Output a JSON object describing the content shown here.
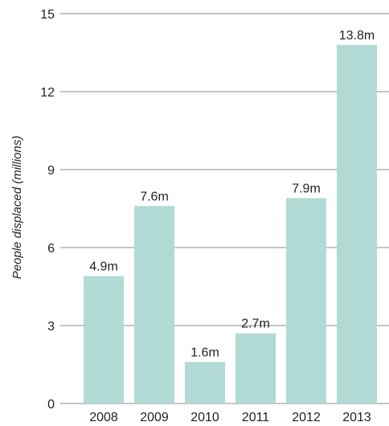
{
  "chart_data": {
    "type": "bar",
    "categories": [
      "2008",
      "2009",
      "2010",
      "2011",
      "2012",
      "2013"
    ],
    "values": [
      4.9,
      7.6,
      1.6,
      2.7,
      7.9,
      13.8
    ],
    "data_labels": [
      "4.9m",
      "7.6m",
      "1.6m",
      "2.7m",
      "7.9m",
      "13.8m"
    ],
    "ylabel": "People displaced (millions)",
    "xlabel": "",
    "title": "",
    "ylim": [
      0,
      15
    ],
    "yticks": [
      "0",
      "3",
      "6",
      "9",
      "12",
      "15"
    ],
    "grid": true,
    "bar_color": "#b2dad4"
  }
}
